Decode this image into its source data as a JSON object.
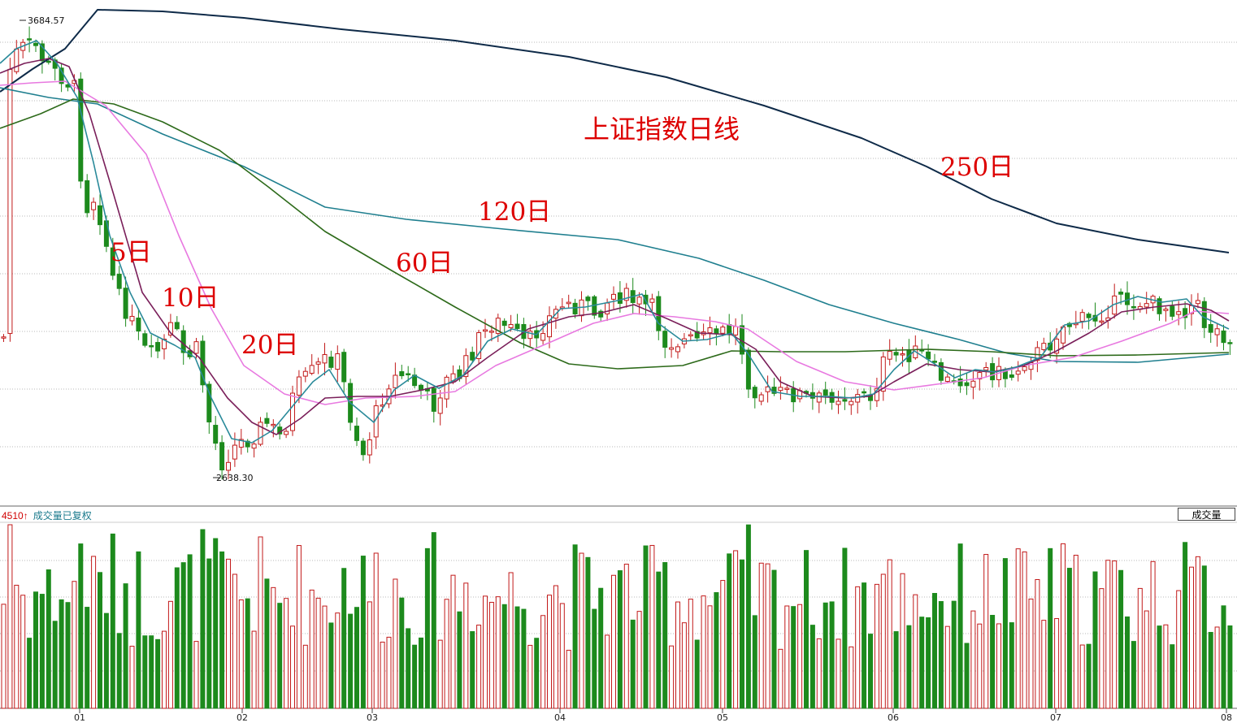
{
  "chart_data": {
    "type": "candlestick",
    "title": "上证指数日线",
    "annotations": {
      "high_label": "3684.57",
      "low_label": "2638.30",
      "ma5": "5日",
      "ma10": "10日",
      "ma20": "20日",
      "ma60": "60日",
      "ma120": "120日",
      "ma250": "250日"
    },
    "x_ticks": [
      "01",
      "02",
      "03",
      "04",
      "05",
      "06",
      "07",
      "08"
    ],
    "price_ylim": [
      2600,
      3750
    ],
    "grid": "horizontal dotted",
    "colors": {
      "up": "#c21a1a",
      "down": "#1d8a1d",
      "ma5": "#2a8a9a",
      "ma10": "#7a1f5a",
      "ma20": "#e879e0",
      "ma60": "#2d6a1a",
      "ma120": "#1f7f8f",
      "ma250": "#0e2a48",
      "label": "#dd0000"
    },
    "volume_panel": {
      "header_value": "4510↑",
      "header_title": "成交量已复权",
      "button_label": "成交量"
    }
  }
}
